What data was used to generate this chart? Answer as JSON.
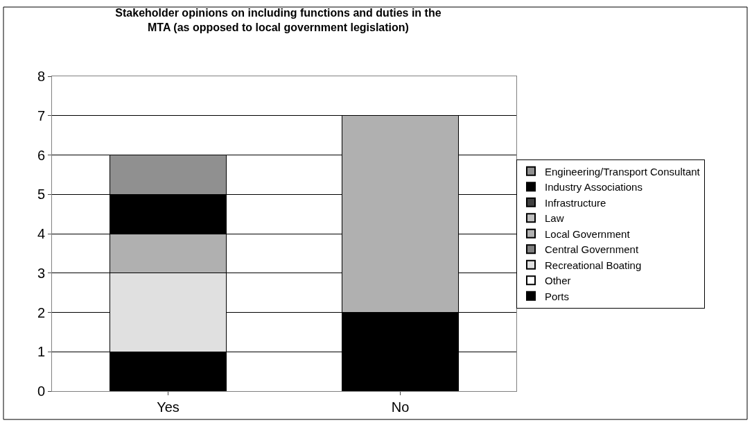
{
  "chart_data": {
    "type": "bar",
    "stacked": true,
    "title": "Stakeholder opinions on including functions and duties in the MTA (as opposed to local government legislation)",
    "categories": [
      "Yes",
      "No"
    ],
    "series": [
      {
        "name": "Ports",
        "color": "#000000",
        "values": [
          1,
          2
        ]
      },
      {
        "name": "Other",
        "color": "#ffffff",
        "values": [
          0,
          0
        ]
      },
      {
        "name": "Recreational Boating",
        "color": "#e0e0e0",
        "values": [
          2,
          0
        ]
      },
      {
        "name": "Central Government",
        "color": "#808080",
        "values": [
          0,
          0
        ]
      },
      {
        "name": "Local Government",
        "color": "#b0b0b0",
        "values": [
          1,
          5
        ]
      },
      {
        "name": "Law",
        "color": "#c0c0c0",
        "values": [
          0,
          0
        ]
      },
      {
        "name": "Infrastructure",
        "color": "#404040",
        "values": [
          0,
          0
        ]
      },
      {
        "name": "Industry Associations",
        "color": "#000000",
        "values": [
          1,
          0
        ]
      },
      {
        "name": "Engineering/Transport Consultant",
        "color": "#909090",
        "values": [
          1,
          0
        ]
      }
    ],
    "ylim": [
      0,
      8
    ],
    "yticks": [
      0,
      1,
      2,
      3,
      4,
      5,
      6,
      7,
      8
    ],
    "grid": "y",
    "legend": "right"
  }
}
